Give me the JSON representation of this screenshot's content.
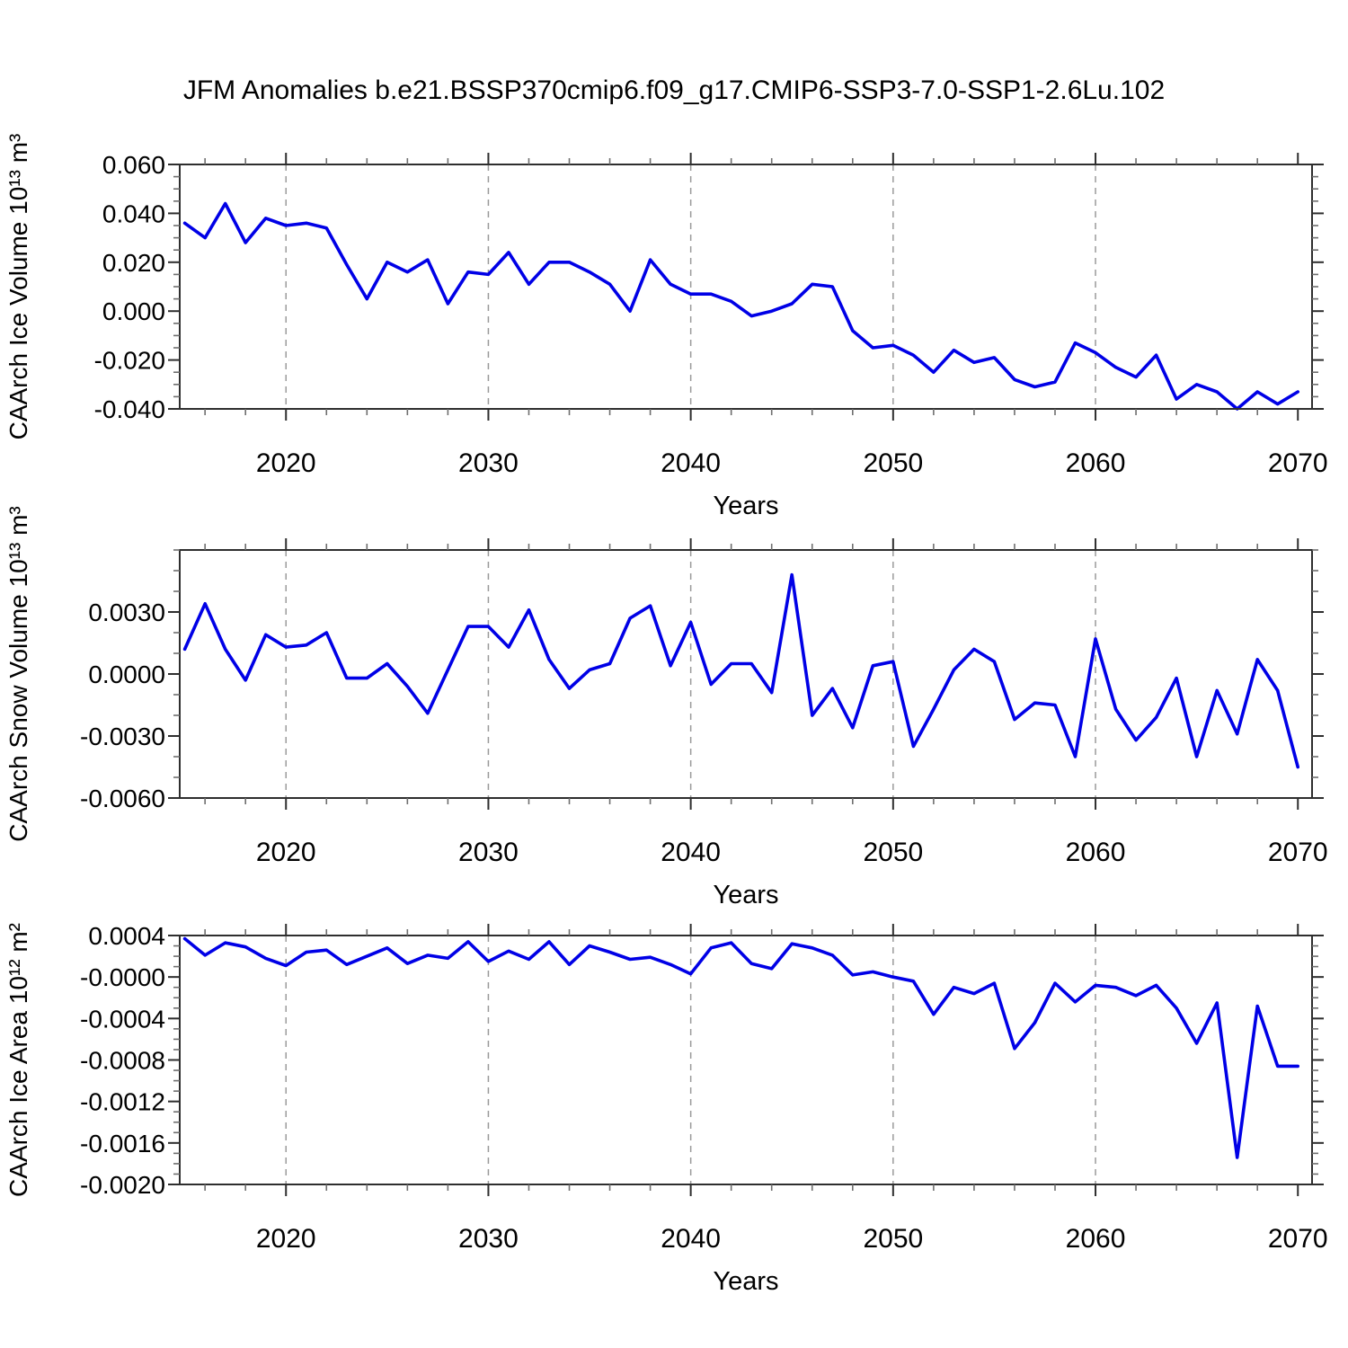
{
  "title": "JFM Anomalies b.e21.BSSP370cmip6.f09_g17.CMIP6-SSP3-7.0-SSP1-2.6Lu.102",
  "colors": {
    "line": "#0000e6",
    "grid": "#9a9a9a",
    "axis": "#2e2e2e",
    "minor_tick": "#6e6e6e",
    "background": "#ffffff",
    "text": "#000000"
  },
  "chart_data": [
    {
      "type": "line",
      "name": "caarch-ice-volume",
      "ylabel": "CAArch Ice Volume 10¹³ m³",
      "xlabel": "Years",
      "legend": "none",
      "grid": "vertical-dashed",
      "xlim": [
        2014.75,
        2070.7
      ],
      "ylim": [
        -0.04,
        0.06
      ],
      "yticks": [
        0.06,
        0.04,
        0.02,
        0.0,
        -0.02,
        -0.04
      ],
      "ytick_labels": [
        "0.060",
        "0.040",
        "0.020",
        "0.000",
        "-0.020",
        "-0.040"
      ],
      "ytick_minor_step": 0.005,
      "xticks": [
        2020,
        2030,
        2040,
        2050,
        2060,
        2070
      ],
      "xtick_labels": [
        "2020",
        "2030",
        "2040",
        "2050",
        "2060",
        "2070"
      ],
      "xtick_minor_step": 2,
      "grid_x": [
        2020,
        2030,
        2040,
        2050,
        2060
      ],
      "x": [
        2015,
        2016,
        2017,
        2018,
        2019,
        2020,
        2021,
        2022,
        2023,
        2024,
        2025,
        2026,
        2027,
        2028,
        2029,
        2030,
        2031,
        2032,
        2033,
        2034,
        2035,
        2036,
        2037,
        2038,
        2039,
        2040,
        2041,
        2042,
        2043,
        2044,
        2045,
        2046,
        2047,
        2048,
        2049,
        2050,
        2051,
        2052,
        2053,
        2054,
        2055,
        2056,
        2057,
        2058,
        2059,
        2060,
        2061,
        2062,
        2063,
        2064,
        2065,
        2066,
        2067,
        2068,
        2069,
        2070
      ],
      "values": [
        0.036,
        0.03,
        0.044,
        0.028,
        0.038,
        0.035,
        0.036,
        0.034,
        0.019,
        0.005,
        0.02,
        0.016,
        0.021,
        0.003,
        0.016,
        0.015,
        0.024,
        0.011,
        0.02,
        0.02,
        0.016,
        0.011,
        0.0,
        0.021,
        0.011,
        0.007,
        0.007,
        0.004,
        -0.002,
        0.0,
        0.003,
        0.011,
        0.01,
        -0.008,
        -0.015,
        -0.014,
        -0.018,
        -0.025,
        -0.016,
        -0.021,
        -0.019,
        -0.028,
        -0.031,
        -0.029,
        -0.013,
        -0.017,
        -0.023,
        -0.027,
        -0.018,
        -0.036,
        -0.03,
        -0.033,
        -0.04,
        -0.033,
        -0.038,
        -0.033
      ]
    },
    {
      "type": "line",
      "name": "caarch-snow-volume",
      "ylabel": "CAArch Snow Volume 10¹³ m³",
      "xlabel": "Years",
      "legend": "none",
      "grid": "vertical-dashed",
      "xlim": [
        2014.75,
        2070.7
      ],
      "ylim": [
        -0.006,
        0.006
      ],
      "yticks": [
        0.003,
        0.0,
        -0.003,
        -0.006
      ],
      "ytick_labels": [
        "0.0030",
        "0.0000",
        "-0.0030",
        "-0.0060"
      ],
      "ytick_minor_step": 0.001,
      "xticks": [
        2020,
        2030,
        2040,
        2050,
        2060,
        2070
      ],
      "xtick_labels": [
        "2020",
        "2030",
        "2040",
        "2050",
        "2060",
        "2070"
      ],
      "xtick_minor_step": 2,
      "grid_x": [
        2020,
        2030,
        2040,
        2050,
        2060
      ],
      "x": [
        2015,
        2016,
        2017,
        2018,
        2019,
        2020,
        2021,
        2022,
        2023,
        2024,
        2025,
        2026,
        2027,
        2028,
        2029,
        2030,
        2031,
        2032,
        2033,
        2034,
        2035,
        2036,
        2037,
        2038,
        2039,
        2040,
        2041,
        2042,
        2043,
        2044,
        2045,
        2046,
        2047,
        2048,
        2049,
        2050,
        2051,
        2052,
        2053,
        2054,
        2055,
        2056,
        2057,
        2058,
        2059,
        2060,
        2061,
        2062,
        2063,
        2064,
        2065,
        2066,
        2067,
        2068,
        2069,
        2070
      ],
      "values": [
        0.0012,
        0.0034,
        0.0012,
        -0.0003,
        0.0019,
        0.0013,
        0.0014,
        0.002,
        -0.0002,
        -0.0002,
        0.0005,
        -0.0006,
        -0.0019,
        0.0002,
        0.0023,
        0.0023,
        0.0013,
        0.0031,
        0.0007,
        -0.0007,
        0.0002,
        0.0005,
        0.0027,
        0.0033,
        0.0004,
        0.0025,
        -0.0005,
        0.0005,
        0.0005,
        -0.0009,
        0.0048,
        -0.002,
        -0.0007,
        -0.0026,
        0.0004,
        0.0006,
        -0.0035,
        -0.0017,
        0.0002,
        0.0012,
        0.0006,
        -0.0022,
        -0.0014,
        -0.0015,
        -0.004,
        0.0017,
        -0.0017,
        -0.0032,
        -0.0021,
        -0.0002,
        -0.004,
        -0.0008,
        -0.0029,
        0.0007,
        -0.0008,
        -0.0045
      ]
    },
    {
      "type": "line",
      "name": "caarch-ice-area",
      "ylabel": "CAArch Ice Area 10¹² m²",
      "xlabel": "Years",
      "legend": "none",
      "grid": "vertical-dashed",
      "xlim": [
        2014.75,
        2070.7
      ],
      "ylim": [
        -0.002,
        0.0004
      ],
      "yticks": [
        0.0004,
        0.0,
        -0.0004,
        -0.0008,
        -0.0012,
        -0.0016,
        -0.002
      ],
      "ytick_labels": [
        "0.0004",
        "-0.0000",
        "-0.0004",
        "-0.0008",
        "-0.0012",
        "-0.0016",
        "-0.0020"
      ],
      "ytick_minor_step": 0.0001,
      "xticks": [
        2020,
        2030,
        2040,
        2050,
        2060,
        2070
      ],
      "xtick_labels": [
        "2020",
        "2030",
        "2040",
        "2050",
        "2060",
        "2070"
      ],
      "xtick_minor_step": 2,
      "grid_x": [
        2020,
        2030,
        2040,
        2050,
        2060
      ],
      "x": [
        2015,
        2016,
        2017,
        2018,
        2019,
        2020,
        2021,
        2022,
        2023,
        2024,
        2025,
        2026,
        2027,
        2028,
        2029,
        2030,
        2031,
        2032,
        2033,
        2034,
        2035,
        2036,
        2037,
        2038,
        2039,
        2040,
        2041,
        2042,
        2043,
        2044,
        2045,
        2046,
        2047,
        2048,
        2049,
        2050,
        2051,
        2052,
        2053,
        2054,
        2055,
        2056,
        2057,
        2058,
        2059,
        2060,
        2061,
        2062,
        2063,
        2064,
        2065,
        2066,
        2067,
        2068,
        2069,
        2070
      ],
      "values": [
        0.00037,
        0.00021,
        0.00033,
        0.00029,
        0.00018,
        0.00011,
        0.00024,
        0.00026,
        0.00012,
        0.0002,
        0.00028,
        0.00013,
        0.00021,
        0.00018,
        0.00034,
        0.00015,
        0.00025,
        0.00017,
        0.00034,
        0.00012,
        0.0003,
        0.00024,
        0.00017,
        0.00019,
        0.00012,
        3e-05,
        0.00028,
        0.00033,
        0.00013,
        8e-05,
        0.00032,
        0.00028,
        0.00021,
        2e-05,
        5e-05,
        0.0,
        -4e-05,
        -0.00036,
        -0.0001,
        -0.00016,
        -6e-05,
        -0.00069,
        -0.00044,
        -6e-05,
        -0.00024,
        -8e-05,
        -0.0001,
        -0.00018,
        -8e-05,
        -0.0003,
        -0.00064,
        -0.00025,
        -0.00174,
        -0.00028,
        -0.00086,
        -0.00086
      ]
    }
  ]
}
